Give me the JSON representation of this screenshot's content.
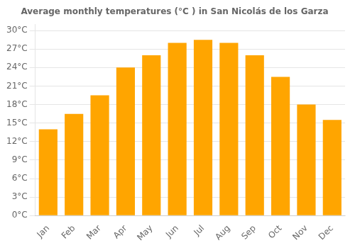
{
  "chart_data": {
    "type": "bar",
    "title": "Average monthly temperatures (°C ) in San Nicolás de los Garza",
    "categories": [
      "Jan",
      "Feb",
      "Mar",
      "Apr",
      "May",
      "Jun",
      "Jul",
      "Aug",
      "Sep",
      "Oct",
      "Nov",
      "Dec"
    ],
    "values": [
      14,
      16.5,
      19.5,
      24,
      26,
      28,
      28.5,
      28,
      26,
      22.5,
      18,
      15.5
    ],
    "color": "#FFA500",
    "ylim": [
      0,
      31
    ],
    "yticks": [
      {
        "value": 0,
        "label": "0°C"
      },
      {
        "value": 3,
        "label": "3°C"
      },
      {
        "value": 6,
        "label": "6°C"
      },
      {
        "value": 9,
        "label": "9°C"
      },
      {
        "value": 12,
        "label": "12°C"
      },
      {
        "value": 15,
        "label": "15°C"
      },
      {
        "value": 18,
        "label": "18°C"
      },
      {
        "value": 21,
        "label": "21°C"
      },
      {
        "value": 24,
        "label": "24°C"
      },
      {
        "value": 27,
        "label": "27°C"
      },
      {
        "value": 30,
        "label": "30°C"
      }
    ],
    "grid": true
  }
}
